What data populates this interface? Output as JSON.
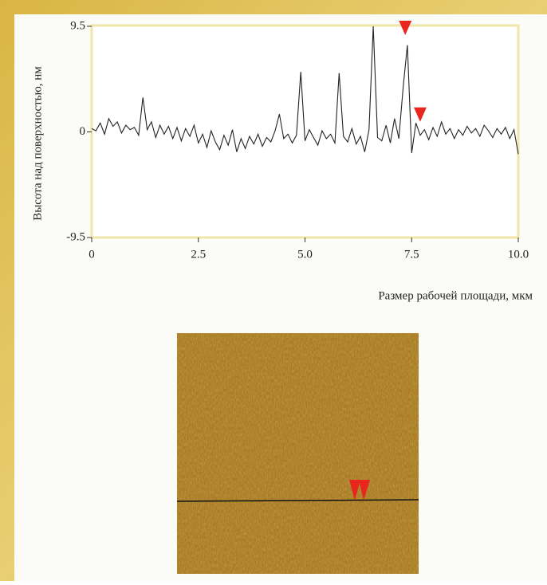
{
  "chart_data": {
    "type": "line",
    "ylabel": "Высота над поверхностью, нм",
    "xlabel": "Размер рабочей площади, мкм",
    "x": [
      0,
      0.1,
      0.2,
      0.3,
      0.4,
      0.5,
      0.6,
      0.7,
      0.8,
      0.9,
      1,
      1.1,
      1.2,
      1.3,
      1.4,
      1.5,
      1.6,
      1.7,
      1.8,
      1.9,
      2,
      2.1,
      2.2,
      2.3,
      2.4,
      2.5,
      2.6,
      2.7,
      2.8,
      2.9,
      3,
      3.1,
      3.2,
      3.3,
      3.4,
      3.5,
      3.6,
      3.7,
      3.8,
      3.9,
      4,
      4.1,
      4.2,
      4.3,
      4.4,
      4.5,
      4.6,
      4.7,
      4.8,
      4.9,
      5,
      5.1,
      5.2,
      5.3,
      5.4,
      5.5,
      5.6,
      5.7,
      5.8,
      5.9,
      6,
      6.1,
      6.2,
      6.3,
      6.4,
      6.5,
      6.6,
      6.7,
      6.8,
      6.9,
      7,
      7.1,
      7.2,
      7.3,
      7.4,
      7.5,
      7.6,
      7.7,
      7.8,
      7.9,
      8,
      8.1,
      8.2,
      8.3,
      8.4,
      8.5,
      8.6,
      8.7,
      8.8,
      8.9,
      9,
      9.1,
      9.2,
      9.3,
      9.4,
      9.5,
      9.6,
      9.7,
      9.8,
      9.9,
      10
    ],
    "series": [
      {
        "color": "#222222",
        "values": [
          0.3,
          0.1,
          0.8,
          -0.2,
          1.2,
          0.5,
          0.9,
          -0.1,
          0.6,
          0.2,
          0.4,
          -0.3,
          3.1,
          0.2,
          0.9,
          -0.5,
          0.6,
          -0.2,
          0.5,
          -0.6,
          0.4,
          -0.8,
          0.3,
          -0.4,
          0.6,
          -1.0,
          -0.2,
          -1.4,
          0.1,
          -0.9,
          -1.6,
          -0.3,
          -1.2,
          0.2,
          -1.8,
          -0.6,
          -1.5,
          -0.4,
          -1.1,
          -0.2,
          -1.3,
          -0.5,
          -0.9,
          0.1,
          1.6,
          -0.6,
          -0.2,
          -1.0,
          -0.3,
          5.4,
          -0.8,
          0.2,
          -0.5,
          -1.2,
          0.1,
          -0.6,
          -0.2,
          -1.0,
          5.3,
          -0.4,
          -0.9,
          0.3,
          -1.1,
          -0.4,
          -1.8,
          0.2,
          9.5,
          -0.5,
          -0.8,
          0.6,
          -1.0,
          1.2,
          -0.6,
          4.0,
          7.8,
          -1.9,
          0.8,
          -0.3,
          0.2,
          -0.7,
          0.4,
          -0.4,
          0.9,
          -0.2,
          0.3,
          -0.6,
          0.2,
          -0.3,
          0.5,
          -0.1,
          0.3,
          -0.4,
          0.6,
          0.1,
          -0.5,
          0.3,
          -0.2,
          0.4,
          -0.6,
          0.2,
          -2.0
        ]
      }
    ],
    "markers": {
      "color": "#e8261e",
      "x": [
        7.35,
        7.7
      ],
      "y": [
        9.0,
        1.2
      ]
    },
    "xlim": [
      0,
      10
    ],
    "ylim": [
      -9.5,
      9.5
    ],
    "xticks": [
      0,
      2.5,
      {
        "value": 5,
        "label": "5.0"
      },
      7.5,
      {
        "value": 10,
        "label": "10.0"
      }
    ],
    "yticks": [
      -9.5,
      0,
      9.5
    ]
  }
}
